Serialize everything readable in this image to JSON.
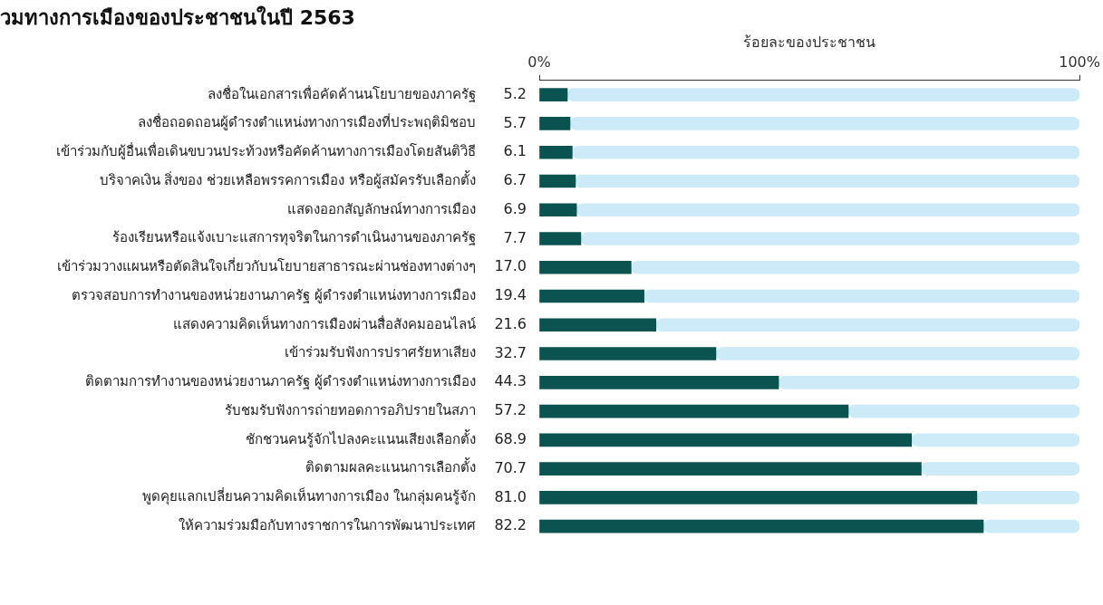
{
  "chart_data": {
    "type": "bar",
    "orientation": "horizontal",
    "title": "วมทางการเมืองของประชาชนในปี 2563",
    "xlabel": "ร้อยละของประชาชน",
    "categories": [
      "ลงชื่อในเอกสารเพื่อคัดค้านนโยบายของภาครัฐ",
      "ลงชื่อถอดถอนผู้ดำรงตำแหน่งทางการเมืองที่ประพฤติมิชอบ",
      "เข้าร่วมกับผู้อื่นเพื่อเดินขบวนประท้วงหรือคัดค้านทางการเมืองโดยสันติวิธี",
      "บริจาคเงิน สิ่งของ ช่วยเหลือพรรคการเมือง หรือผู้สมัครรับเลือกตั้ง",
      "แสดงออกสัญลักษณ์ทางการเมือง",
      "ร้องเรียนหรือแจ้งเบาะแสการทุจริตในการดำเนินงานของภาครัฐ",
      "เข้าร่วมวางแผนหรือตัดสินใจเกี่ยวกับนโยบายสาธารณะผ่านช่องทางต่างๆ",
      "ตรวจสอบการทำงานของหน่วยงานภาครัฐ ผู้ดำรงตำแหน่งทางการเมือง",
      "แสดงความคิดเห็นทางการเมืองผ่านสื่อสังคมออนไลน์",
      "เข้าร่วมรับฟังการปราศรัยหาเสียง",
      "ติดตามการทำงานของหน่วยงานภาครัฐ ผู้ดำรงตำแหน่งทางการเมือง",
      "รับชมรับฟังการถ่ายทอดการอภิปรายในสภา",
      "ชักชวนคนรู้จักไปลงคะแนนเสียงเลือกตั้ง",
      "ติดตามผลคะแนนการเลือกตั้ง",
      "พูดคุยแลกเปลี่ยนความคิดเห็นทางการเมือง ในกลุ่มคนรู้จัก",
      "ให้ความร่วมมือกับทางราชการในการพัฒนาประเทศ"
    ],
    "stacked": true,
    "series": [
      {
        "color": "#0b5351",
        "values": [
          5.2,
          5.7,
          6.1,
          6.7,
          6.9,
          7.7,
          17.0,
          19.4,
          21.6,
          32.7,
          44.3,
          57.2,
          68.9,
          70.7,
          81.0,
          82.2
        ],
        "value_labels": [
          "5.2",
          "5.7",
          "6.1",
          "6.7",
          "6.9",
          "7.7",
          "17.0",
          "19.4",
          "21.6",
          "32.7",
          "44.3",
          "57.2",
          "68.9",
          "70.7",
          "81.0",
          "82.2"
        ]
      },
      {
        "color": "#cdeaf9",
        "values": [
          94.8,
          94.3,
          93.9,
          93.3,
          93.1,
          92.3,
          83.0,
          80.6,
          78.4,
          67.3,
          55.7,
          42.8,
          31.1,
          29.3,
          19.0,
          17.8
        ]
      }
    ],
    "xlim": [
      0,
      100
    ],
    "xticks": [
      {
        "value": 0,
        "label": "0%"
      },
      {
        "value": 100,
        "label": "100%"
      }
    ],
    "grid": false,
    "legend": false
  }
}
